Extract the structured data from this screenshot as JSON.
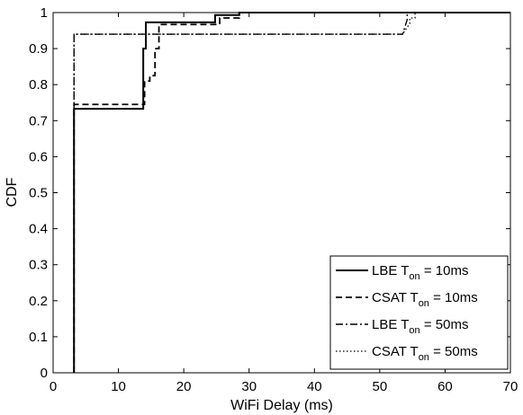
{
  "chart_data": {
    "type": "line",
    "title": "",
    "xlabel": "WiFi Delay (ms)",
    "ylabel": "CDF",
    "xlim": [
      0,
      70
    ],
    "ylim": [
      0,
      1
    ],
    "x_ticks": [
      "0",
      "10",
      "20",
      "30",
      "40",
      "50",
      "60",
      "70"
    ],
    "y_ticks": [
      "0",
      "0.1",
      "0.2",
      "0.3",
      "0.4",
      "0.5",
      "0.6",
      "0.7",
      "0.8",
      "0.9",
      "1"
    ],
    "grid": false,
    "legend_position": "bottom-right",
    "series": [
      {
        "name": "LBE T_on = 10ms",
        "legend": {
          "main": "LBE T",
          "sub": "on",
          "suffix": " = 10ms"
        },
        "style": "solid",
        "color": "#000000",
        "x": [
          3.2,
          3.2,
          13.8,
          13.8,
          14.2,
          14.2,
          24.8,
          24.8,
          28.5,
          28.5,
          70
        ],
        "y": [
          0,
          0.733,
          0.733,
          0.9,
          0.9,
          0.973,
          0.973,
          0.993,
          0.993,
          1.0,
          1.0
        ]
      },
      {
        "name": "CSAT T_on = 10ms",
        "legend": {
          "main": "CSAT T",
          "sub": "on",
          "suffix": " = 10ms"
        },
        "style": "dashed",
        "color": "#000000",
        "x": [
          3.2,
          3.2,
          14.0,
          14.0,
          14.8,
          14.8,
          15.6,
          15.6,
          16.2,
          16.2,
          25.5,
          25.5,
          28.5,
          28.5,
          70
        ],
        "y": [
          0,
          0.745,
          0.745,
          0.81,
          0.81,
          0.825,
          0.825,
          0.9,
          0.9,
          0.967,
          0.967,
          0.985,
          0.985,
          1.0,
          1.0
        ]
      },
      {
        "name": "LBE T_on = 50ms",
        "legend": {
          "main": "LBE T",
          "sub": "on",
          "suffix": " = 50ms"
        },
        "style": "dashdot",
        "color": "#000000",
        "x": [
          3.2,
          3.2,
          53.5,
          54.2,
          54.2,
          70
        ],
        "y": [
          0,
          0.94,
          0.94,
          0.98,
          1.0,
          1.0
        ]
      },
      {
        "name": "CSAT T_on = 50ms",
        "legend": {
          "main": "CSAT T",
          "sub": "on",
          "suffix": " = 50ms"
        },
        "style": "dotted",
        "color": "#000000",
        "x": [
          3.2,
          3.2,
          53.5,
          54.6,
          54.6,
          55.4,
          55.4,
          70
        ],
        "y": [
          0,
          0.94,
          0.94,
          0.97,
          0.985,
          0.985,
          1.0,
          1.0
        ]
      }
    ]
  }
}
